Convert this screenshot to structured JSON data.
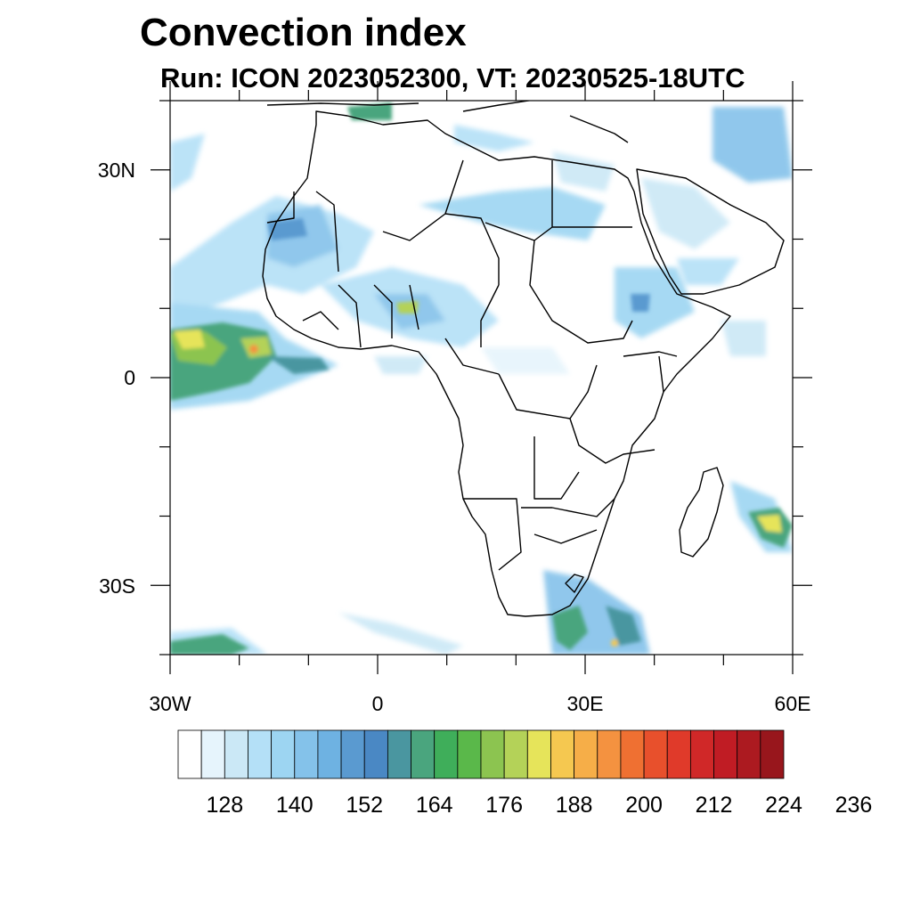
{
  "title": "Convection index",
  "subtitle": "Run: ICON 2023052300,  VT: 20230525-18UTC",
  "map": {
    "region": "Africa",
    "projection": "cylindrical equidistant",
    "lon_range": [
      -30,
      60
    ],
    "lat_range": [
      -40,
      40
    ],
    "xtick_labels": [
      "30W",
      "0",
      "30E",
      "60E"
    ],
    "ytick_labels": [
      "30N",
      "0",
      "30S"
    ],
    "features": [
      "coastlines",
      "country borders",
      "shaded convection index"
    ]
  },
  "colorbar": {
    "labels": [
      "128",
      "140",
      "152",
      "164",
      "176",
      "188",
      "200",
      "212",
      "224",
      "236"
    ],
    "colors": [
      "#ffffff",
      "#e6f4fc",
      "#cbe8f6",
      "#b4e0f7",
      "#9dd5f2",
      "#84c2ea",
      "#6eb2e2",
      "#5a9ad0",
      "#4a88c4",
      "#4a96a0",
      "#4aa57e",
      "#3fae5a",
      "#5ab84a",
      "#8cc450",
      "#b4d258",
      "#e6e45a",
      "#f5c850",
      "#f6ae48",
      "#f49240",
      "#ef7032",
      "#e8502c",
      "#e03a2a",
      "#d02828",
      "#c01c24",
      "#ac1a20",
      "#98161c"
    ]
  }
}
